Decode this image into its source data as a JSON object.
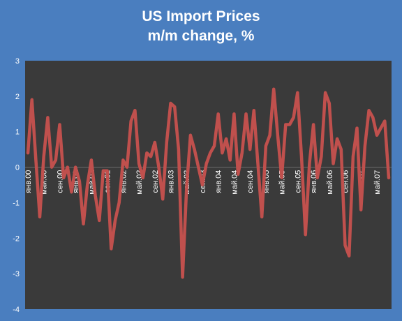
{
  "chart_data": {
    "type": "line",
    "title_line1": "US Import Prices",
    "title_line2": "m/m change, %",
    "xlabel": "",
    "ylabel": "",
    "ylim": [
      -4,
      3
    ],
    "yticks": [
      3,
      2,
      1,
      0,
      -1,
      -2,
      -3,
      -4
    ],
    "grid": false,
    "line_color": "#c0504d",
    "plot_bg": "#3a3a3a",
    "x_tick_labels": [
      {
        "index": 0,
        "label": "янв.00"
      },
      {
        "index": 4,
        "label": "май.00"
      },
      {
        "index": 8,
        "label": "сен.00"
      },
      {
        "index": 12,
        "label": "янв.01"
      },
      {
        "index": 16,
        "label": "май.01"
      },
      {
        "index": 20,
        "label": "сен.01"
      },
      {
        "index": 24,
        "label": "янв.02"
      },
      {
        "index": 28,
        "label": "май.02"
      },
      {
        "index": 32,
        "label": "сен.02"
      },
      {
        "index": 36,
        "label": "янв.03"
      },
      {
        "index": 40,
        "label": "май.03"
      },
      {
        "index": 44,
        "label": "сен.03"
      },
      {
        "index": 48,
        "label": "янв.04"
      },
      {
        "index": 52,
        "label": "май.04"
      },
      {
        "index": 56,
        "label": "сен.04"
      },
      {
        "index": 60,
        "label": "янв.05"
      },
      {
        "index": 64,
        "label": "май.05"
      },
      {
        "index": 68,
        "label": "сен.05"
      },
      {
        "index": 72,
        "label": "янв.06"
      },
      {
        "index": 76,
        "label": "май.06"
      },
      {
        "index": 80,
        "label": "сен.06"
      },
      {
        "index": 84,
        "label": "янв.07"
      },
      {
        "index": 88,
        "label": "май.07"
      }
    ],
    "series": [
      {
        "values": [
          0.4,
          1.9,
          0.2,
          -1.4,
          0.3,
          1.4,
          0.0,
          0.2,
          1.2,
          -0.3,
          0.0,
          -0.7,
          0.0,
          -0.4,
          -1.6,
          -0.5,
          0.2,
          -0.8,
          -1.5,
          -0.1,
          -0.1,
          -2.3,
          -1.5,
          -1.0,
          0.2,
          0.0,
          1.3,
          1.6,
          0.1,
          -0.3,
          0.4,
          0.3,
          0.7,
          0.0,
          -0.9,
          0.7,
          1.8,
          1.7,
          0.5,
          -3.1,
          -0.6,
          0.9,
          0.5,
          0.0,
          -0.5,
          0.1,
          0.4,
          0.6,
          1.5,
          0.4,
          0.8,
          0.2,
          1.5,
          -0.2,
          0.4,
          1.5,
          0.5,
          1.6,
          0.1,
          -1.4,
          0.6,
          0.9,
          2.2,
          0.9,
          -0.3,
          1.2,
          1.2,
          1.4,
          2.1,
          0.3,
          -1.9,
          0.1,
          1.2,
          -0.3,
          0.3,
          2.1,
          1.8,
          0.1,
          0.8,
          0.5,
          -2.2,
          -2.5,
          0.3,
          1.1,
          -1.2,
          0.6,
          1.6,
          1.4,
          0.9,
          1.1,
          1.3,
          -0.3
        ]
      }
    ]
  }
}
